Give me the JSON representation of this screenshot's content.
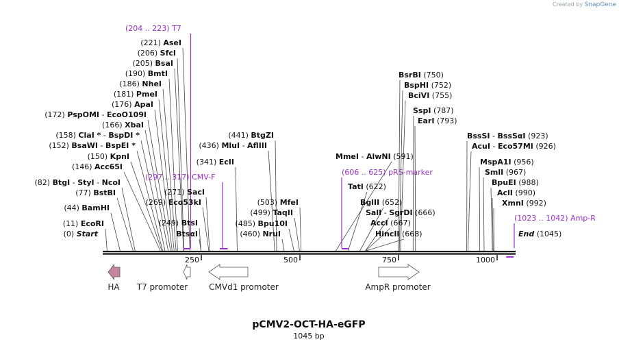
{
  "branding": {
    "created_by": "Created by",
    "app": "SnapGene"
  },
  "map": {
    "name": "pCMV2-OCT-HA-eGFP",
    "length_label": "1045 bp",
    "length": 1045
  },
  "ruler_ticks": [
    {
      "label": "250",
      "value": 250
    },
    {
      "label": "500",
      "value": 500
    },
    {
      "label": "750",
      "value": 750
    },
    {
      "label": "1000",
      "value": 1000
    }
  ],
  "colors": {
    "feature": "#9b2fc9",
    "arrow_ha": "#c7879f",
    "arrow_outline": "#555555",
    "line": "#111111"
  },
  "left_sites": [
    {
      "pos": "(0)",
      "name": "Start",
      "italic": true,
      "at": 0
    },
    {
      "pos": "(11)",
      "name": "EcoRI",
      "at": 11
    },
    {
      "pos": "(44)",
      "name": "BamHI",
      "at": 44
    },
    {
      "pos": "(77)",
      "name": "BstBI",
      "at": 77
    },
    {
      "pos": "(82)",
      "name": "BtgI",
      "alt": "StyI",
      "alt2": "NcoI",
      "at": 82
    },
    {
      "pos": "(146)",
      "name": "Acc65I",
      "at": 146
    },
    {
      "pos": "(150)",
      "name": "KpnI",
      "at": 150
    },
    {
      "pos": "(152)",
      "name": "BsaWI",
      "alt": "BspEI",
      "star": "*",
      "at": 152
    },
    {
      "pos": "(158)",
      "name": "ClaI",
      "star": "*",
      "alt": "BspDI",
      "star2": "*",
      "at": 158
    },
    {
      "pos": "(166)",
      "name": "XbaI",
      "at": 166
    },
    {
      "pos": "(172)",
      "name": "PspOMI",
      "alt": "EcoO109I",
      "at": 172
    },
    {
      "pos": "(176)",
      "name": "ApaI",
      "at": 176
    },
    {
      "pos": "(181)",
      "name": "PmeI",
      "at": 181
    },
    {
      "pos": "(186)",
      "name": "NheI",
      "at": 186
    },
    {
      "pos": "(190)",
      "name": "BmtI",
      "at": 190
    },
    {
      "pos": "(205)",
      "name": "BsaI",
      "at": 205
    },
    {
      "pos": "(206)",
      "name": "SfcI",
      "at": 206
    },
    {
      "pos": "(221)",
      "name": "AseI",
      "at": 221
    }
  ],
  "mid_sites": [
    {
      "pos": "(249)",
      "name": "BtsI",
      "at": 249
    },
    {
      "name": "BtsαI",
      "at": 249
    },
    {
      "pos": "(269)",
      "name": "Eco53kI",
      "at": 269
    },
    {
      "pos": "(271)",
      "name": "SacI",
      "at": 271
    },
    {
      "pos": "(341)",
      "name": "EcII",
      "at": 341
    },
    {
      "pos": "(436)",
      "name": "MluI",
      "alt": "AflIII",
      "at": 436
    },
    {
      "pos": "(441)",
      "name": "BtgZI",
      "at": 441
    },
    {
      "pos": "(460)",
      "name": "NruI",
      "at": 460
    },
    {
      "pos": "(485)",
      "name": "Bpu10I",
      "at": 485
    },
    {
      "pos": "(499)",
      "name": "TaqII",
      "at": 499
    },
    {
      "pos": "(503)",
      "name": "MfeI",
      "at": 503
    }
  ],
  "right_sites": [
    {
      "pos": "(591)",
      "name": "MmeI",
      "alt": "AlwNI",
      "at": 591
    },
    {
      "pos": "(622)",
      "name": "TatI",
      "at": 622
    },
    {
      "pos": "(652)",
      "name": "BglII",
      "at": 652
    },
    {
      "pos": "(666)",
      "name": "SalI",
      "alt": "SgrDI",
      "at": 666
    },
    {
      "pos": "(667)",
      "name": "AccI",
      "at": 667
    },
    {
      "pos": "(668)",
      "name": "HincII",
      "at": 668
    },
    {
      "pos": "(750)",
      "name": "BsrBI",
      "at": 750
    },
    {
      "pos": "(752)",
      "name": "BspHI",
      "at": 752
    },
    {
      "pos": "(755)",
      "name": "BciVI",
      "at": 755
    },
    {
      "pos": "(787)",
      "name": "SspI",
      "at": 787
    },
    {
      "pos": "(793)",
      "name": "EarI",
      "at": 793
    },
    {
      "pos": "(923)",
      "name": "BssSI",
      "alt": "BssSαI",
      "at": 923
    },
    {
      "pos": "(926)",
      "name": "AcuI",
      "alt": "Eco57MI",
      "at": 926
    },
    {
      "pos": "(956)",
      "name": "MspA1I",
      "at": 956
    },
    {
      "pos": "(967)",
      "name": "SmlI",
      "at": 967
    },
    {
      "pos": "(988)",
      "name": "BpuEI",
      "at": 988
    },
    {
      "pos": "(990)",
      "name": "AclI",
      "at": 990
    },
    {
      "pos": "(992)",
      "name": "XmnI",
      "at": 992
    },
    {
      "pos": "(1045)",
      "name": "End",
      "italic": true,
      "at": 1045
    }
  ],
  "primers": [
    {
      "range": "(204 .. 223)",
      "name": "T7",
      "start": 204,
      "end": 223
    },
    {
      "range": "(297 .. 317)",
      "name": "CMV-F",
      "start": 297,
      "end": 317
    },
    {
      "range": "(606 .. 625)",
      "name": "pRS-marker",
      "start": 606,
      "end": 625
    },
    {
      "range": "(1023 .. 1042)",
      "name": "Amp-R",
      "start": 1023,
      "end": 1042
    }
  ],
  "features": [
    {
      "name": "HA",
      "direction": "left",
      "start": 5,
      "end": 33
    },
    {
      "name": "T7 promoter",
      "direction": "left",
      "start": 204,
      "end": 223
    },
    {
      "name": "CMVd1 promoter",
      "direction": "left",
      "start": 297,
      "end": 400
    },
    {
      "name": "AmpR promoter",
      "direction": "right",
      "start": 670,
      "end": 775
    }
  ]
}
